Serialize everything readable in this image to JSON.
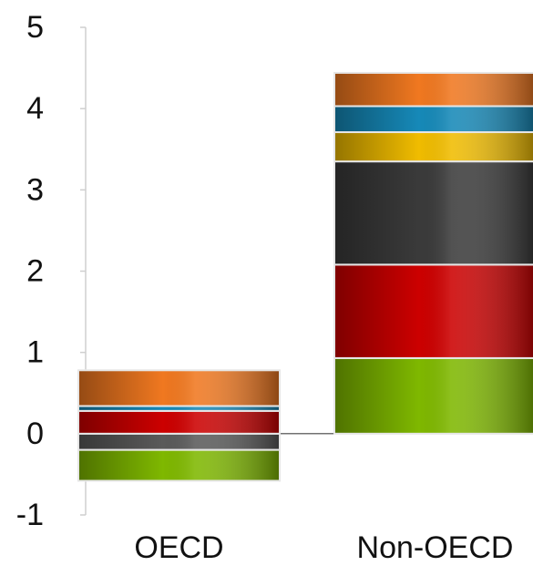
{
  "chart_data": {
    "type": "bar",
    "stacked": true,
    "categories": [
      "OECD",
      "Non-OECD"
    ],
    "ylim": [
      -1,
      5
    ],
    "yticks": [
      -1,
      0,
      1,
      2,
      3,
      4,
      5
    ],
    "grid": false,
    "legend": "none",
    "series": [
      {
        "color": "#5a5a5a",
        "values": [
          -0.2,
          0
        ]
      },
      {
        "color": "#7fb800",
        "values": [
          -0.38,
          0.93
        ]
      },
      {
        "color": "#cc0000",
        "values": [
          0.28,
          1.15
        ]
      },
      {
        "color": "#3a3a3a",
        "values": [
          0,
          1.27
        ]
      },
      {
        "color": "#f0bc00",
        "values": [
          0,
          0.36
        ]
      },
      {
        "color": "#1689b8",
        "values": [
          0.06,
          0.32
        ]
      },
      {
        "color": "#f07820",
        "values": [
          0.44,
          0.41
        ]
      }
    ]
  }
}
